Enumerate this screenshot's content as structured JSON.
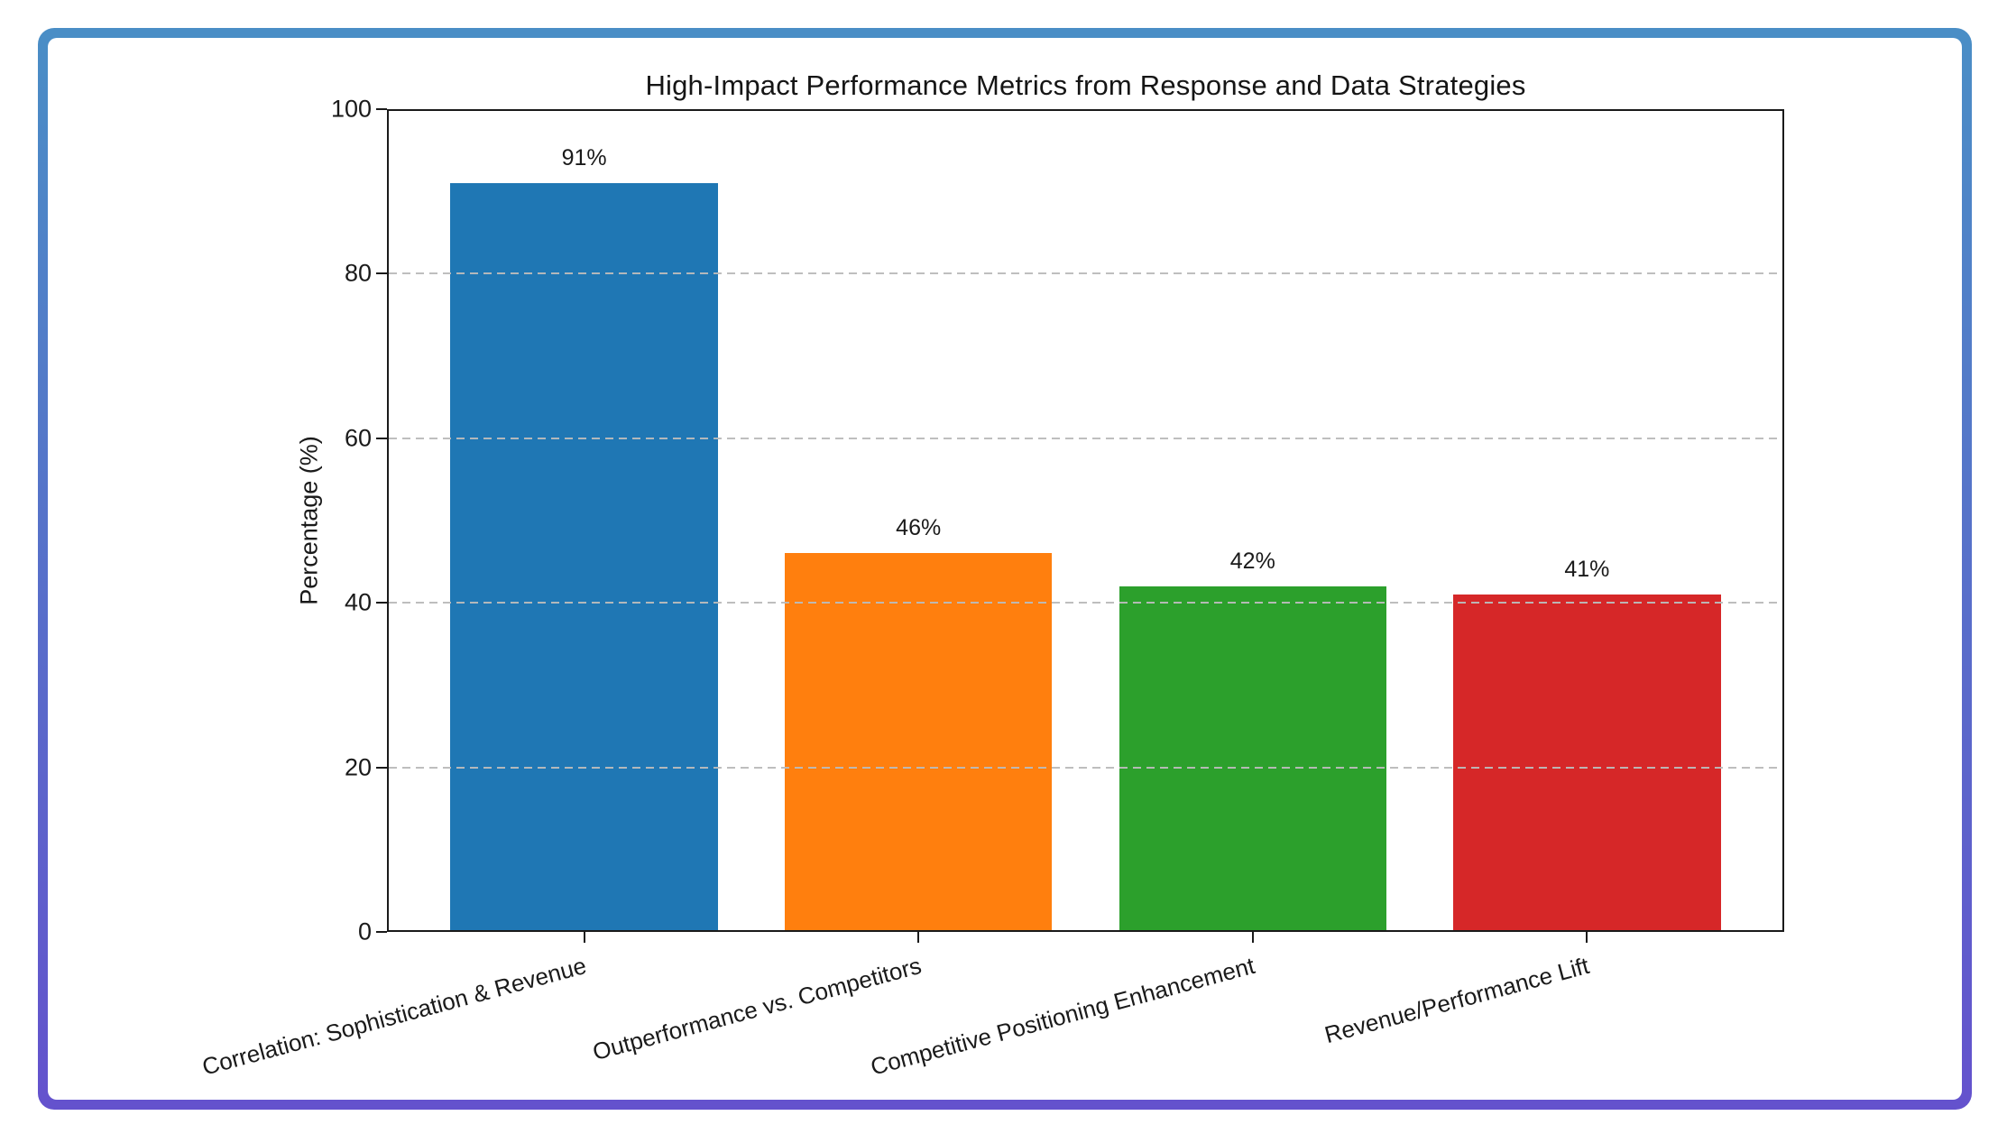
{
  "frame": {
    "gradient_top": "#4a8ec6",
    "gradient_bottom": "#6452cd",
    "inner_background": "#ffffff"
  },
  "chart_data": {
    "type": "bar",
    "title": "High-Impact Performance Metrics from Response and Data Strategies",
    "xlabel": "",
    "ylabel": "Percentage (%)",
    "categories": [
      "Correlation: Sophistication & Revenue",
      "Outperformance vs. Competitors",
      "Competitive Positioning Enhancement",
      "Revenue/Performance Lift"
    ],
    "values": [
      91,
      46,
      42,
      41
    ],
    "value_labels": [
      "91%",
      "46%",
      "42%",
      "41%"
    ],
    "bar_colors": [
      "#1f77b4",
      "#ff7f0e",
      "#2ca02c",
      "#d62728"
    ],
    "ylim": [
      0,
      100
    ],
    "yticks": [
      0,
      20,
      40,
      60,
      80,
      100
    ],
    "ytick_labels": [
      "0",
      "20",
      "40",
      "60",
      "80",
      "100"
    ],
    "grid": {
      "axis": "y",
      "style": "dashed",
      "color": "#bbbbbb",
      "drawn_above_bars": true,
      "at": [
        20,
        40,
        60,
        80
      ]
    },
    "legend": null,
    "x_tick_rotation_deg": 15,
    "axis_color": "#1a1a1a"
  }
}
